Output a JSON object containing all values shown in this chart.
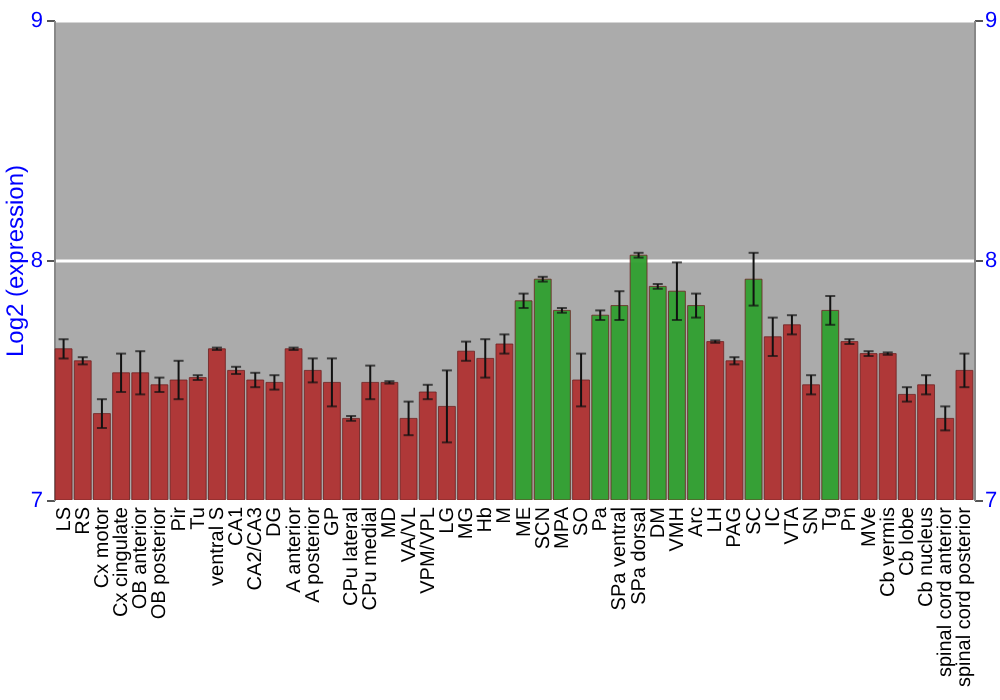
{
  "chart_data": {
    "type": "bar",
    "ylabel": "Log2 (expression)",
    "categories": [
      "LS",
      "RS",
      "Cx motor",
      "Cx cingulate",
      "OB anterior",
      "OB posterior",
      "Pir",
      "Tu",
      "ventral S",
      "CA1",
      "CA2/CA3",
      "DG",
      "A anterior",
      "A posterior",
      "GP",
      "CPu lateral",
      "CPu medial",
      "MD",
      "VA/VL",
      "VPM/VPL",
      "LG",
      "MG",
      "Hb",
      "M",
      "ME",
      "SCN",
      "MPA",
      "SO",
      "Pa",
      "SPa ventral",
      "SPa dorsal",
      "DM",
      "VMH",
      "Arc",
      "LH",
      "PAG",
      "SC",
      "IC",
      "VTA",
      "SN",
      "Tg",
      "Pn",
      "MVe",
      "Cb vermis",
      "Cb lobe",
      "Cb nucleus",
      "spinal cord anterior",
      "spinal cord posterior"
    ],
    "values": [
      7.63,
      7.58,
      7.36,
      7.53,
      7.53,
      7.48,
      7.5,
      7.51,
      7.63,
      7.54,
      7.5,
      7.49,
      7.63,
      7.54,
      7.49,
      7.34,
      7.49,
      7.49,
      7.34,
      7.45,
      7.39,
      7.62,
      7.59,
      7.65,
      7.83,
      7.92,
      7.79,
      7.5,
      7.77,
      7.81,
      8.02,
      7.89,
      7.87,
      7.81,
      7.66,
      7.58,
      7.92,
      7.68,
      7.73,
      7.48,
      7.79,
      7.66,
      7.61,
      7.61,
      7.44,
      7.48,
      7.34,
      7.54
    ],
    "errors": [
      0.04,
      0.015,
      0.06,
      0.08,
      0.09,
      0.03,
      0.08,
      0.01,
      0.005,
      0.015,
      0.03,
      0.03,
      0.005,
      0.05,
      0.1,
      0.01,
      0.07,
      0.005,
      0.07,
      0.03,
      0.15,
      0.04,
      0.08,
      0.04,
      0.03,
      0.01,
      0.01,
      0.11,
      0.02,
      0.06,
      0.01,
      0.01,
      0.12,
      0.05,
      0.005,
      0.015,
      0.11,
      0.08,
      0.04,
      0.04,
      0.06,
      0.01,
      0.01,
      0.005,
      0.03,
      0.04,
      0.05,
      0.07
    ],
    "colors": [
      "#b03232",
      "#b03232",
      "#b03232",
      "#b03232",
      "#b03232",
      "#b03232",
      "#b03232",
      "#b03232",
      "#b03232",
      "#b03232",
      "#b03232",
      "#b03232",
      "#b03232",
      "#b03232",
      "#b03232",
      "#b03232",
      "#b03232",
      "#b03232",
      "#b03232",
      "#b03232",
      "#b03232",
      "#b03232",
      "#b03232",
      "#b03232",
      "#30a030",
      "#30a030",
      "#30a030",
      "#b03232",
      "#30a030",
      "#30a030",
      "#30a030",
      "#30a030",
      "#30a030",
      "#30a030",
      "#b03232",
      "#b03232",
      "#30a030",
      "#b03232",
      "#b03232",
      "#b03232",
      "#30a030",
      "#b03232",
      "#b03232",
      "#b03232",
      "#b03232",
      "#b03232",
      "#b03232",
      "#b03232"
    ],
    "ylim": [
      7,
      9
    ],
    "yticks": [
      7,
      8,
      9
    ],
    "y2lim": [
      7,
      9
    ],
    "y2ticks": [
      7,
      8,
      9
    ],
    "grid": "y"
  }
}
